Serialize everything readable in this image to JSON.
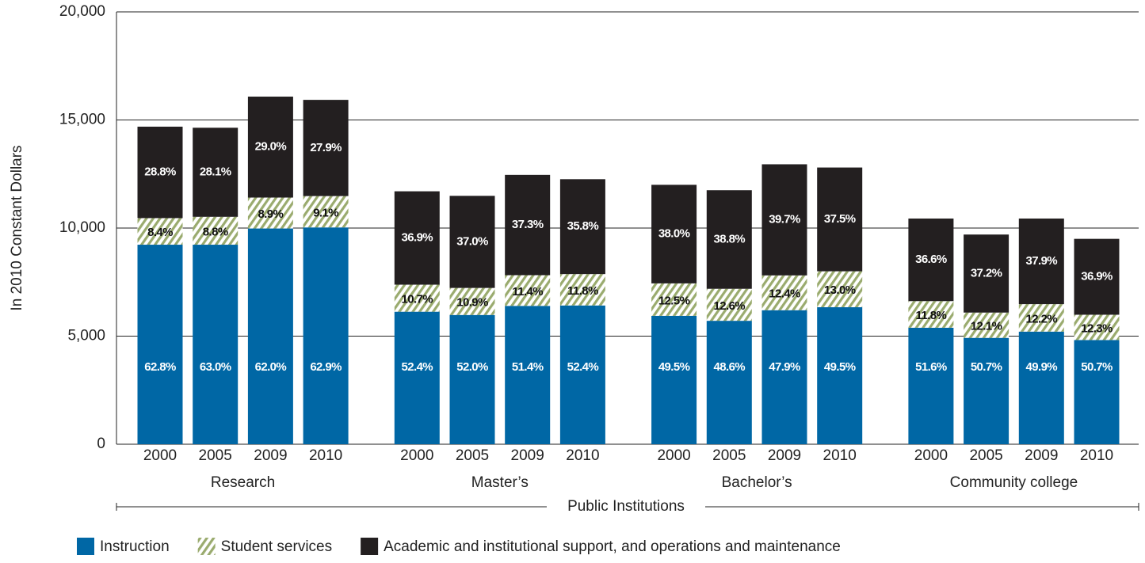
{
  "chart_data": {
    "type": "stacked-bar",
    "ylabel": "In 2010 Constant Dollars",
    "xlabel": "Public Institutions",
    "ylim": [
      0,
      20000
    ],
    "yticks": [
      0,
      {
        "value": 5000,
        "label": "5,000"
      },
      {
        "value": 10000,
        "label": "10,000"
      },
      {
        "value": 15000,
        "label": "15,000"
      },
      {
        "value": 20000,
        "label": "20,000"
      }
    ],
    "grid": true,
    "groups": [
      {
        "name": "Research",
        "categories": [
          "2000",
          "2005",
          "2009",
          "2010"
        ]
      },
      {
        "name": "Master’s",
        "categories": [
          "2000",
          "2005",
          "2009",
          "2010"
        ]
      },
      {
        "name": "Bachelor’s",
        "categories": [
          "2000",
          "2005",
          "2009",
          "2010"
        ]
      },
      {
        "name": "Community college",
        "categories": [
          "2000",
          "2005",
          "2009",
          "2010"
        ]
      }
    ],
    "series": [
      {
        "name": "Instruction",
        "color": "#0067a5",
        "label_color": "#ffffff",
        "values": [
          9230,
          9230,
          9980,
          10030,
          6130,
          5980,
          6400,
          6420,
          5940,
          5710,
          6200,
          6340,
          5390,
          4920,
          5210,
          4820
        ],
        "labels": [
          "62.8%",
          "63.0%",
          "62.0%",
          "62.9%",
          "52.4%",
          "52.0%",
          "51.4%",
          "52.4%",
          "49.5%",
          "48.6%",
          "47.9%",
          "49.5%",
          "51.6%",
          "50.7%",
          "49.9%",
          "50.7%"
        ]
      },
      {
        "name": "Student services",
        "color": "#9aab6e",
        "hatch": true,
        "label_color": "#111111",
        "values": [
          1230,
          1290,
          1430,
          1450,
          1250,
          1250,
          1420,
          1450,
          1500,
          1480,
          1610,
          1660,
          1230,
          1170,
          1270,
          1170
        ],
        "labels": [
          "8.4%",
          "8.8%",
          "8.9%",
          "9.1%",
          "10.7%",
          "10.9%",
          "11.4%",
          "11.8%",
          "12.5%",
          "12.6%",
          "12.4%",
          "13.0%",
          "11.8%",
          "12.1%",
          "12.2%",
          "12.3%"
        ]
      },
      {
        "name": "Academic and institutional support, and operations and maintenance",
        "color": "#231f20",
        "label_color": "#ffffff",
        "values": [
          4230,
          4120,
          4670,
          4450,
          4320,
          4260,
          4640,
          4390,
          4560,
          4560,
          5140,
          4800,
          3820,
          3610,
          3960,
          3510
        ],
        "labels": [
          "28.8%",
          "28.1%",
          "29.0%",
          "27.9%",
          "36.9%",
          "37.0%",
          "37.3%",
          "35.8%",
          "38.0%",
          "38.8%",
          "39.7%",
          "37.5%",
          "36.6%",
          "37.2%",
          "37.9%",
          "36.9%"
        ]
      }
    ]
  }
}
